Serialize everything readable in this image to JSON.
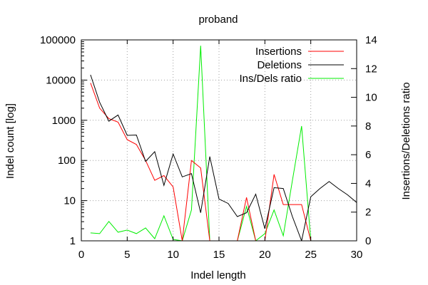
{
  "chart_data": {
    "type": "line",
    "title": "proband",
    "xlabel": "Indel length",
    "ylabel": "Indel count [log]",
    "y2label": "Insertions/Deletions ratio",
    "xlim": [
      0,
      30
    ],
    "ylim": [
      1,
      100000
    ],
    "yscale": "log",
    "y2lim": [
      0,
      14
    ],
    "grid": true,
    "legend_position": "top-right",
    "x_ticks": [
      "0",
      "5",
      "10",
      "15",
      "20",
      "25",
      "30"
    ],
    "y_ticks": [
      "1",
      "10",
      "100",
      "1000",
      "10000",
      "100000"
    ],
    "y2_ticks": [
      "0",
      "2",
      "4",
      "6",
      "8",
      "10",
      "12",
      "14"
    ],
    "series": [
      {
        "name": "Insertions",
        "axis": "y",
        "color": "#ff0000",
        "x": [
          1,
          2,
          3,
          4,
          5,
          6,
          7,
          8,
          9,
          10,
          11,
          12,
          13,
          14,
          15,
          16,
          17,
          18,
          19,
          20,
          21,
          22,
          23,
          24,
          25
        ],
        "y": [
          8500,
          2000,
          1100,
          900,
          330,
          250,
          100,
          32,
          42,
          22,
          1,
          100,
          65,
          1,
          1,
          1,
          1,
          12,
          1,
          1,
          45,
          8,
          8,
          8,
          1
        ]
      },
      {
        "name": "Deletions",
        "axis": "y",
        "color": "#000000",
        "x": [
          1,
          2,
          3,
          4,
          5,
          6,
          7,
          8,
          9,
          10,
          11,
          12,
          13,
          14,
          15,
          16,
          17,
          18,
          19,
          20,
          21,
          22,
          23,
          24,
          25,
          26,
          27,
          28,
          29,
          30
        ],
        "y": [
          13500,
          2800,
          950,
          1350,
          420,
          430,
          95,
          165,
          24,
          145,
          39,
          47,
          5,
          125,
          11,
          8.5,
          4,
          5,
          14.5,
          2,
          21,
          20,
          4,
          1,
          12.5,
          20,
          30,
          20,
          14,
          9
        ]
      },
      {
        "name": "Ins/Dels ratio",
        "axis": "y2",
        "color": "#00ee00",
        "x": [
          1,
          2,
          3,
          4,
          5,
          6,
          7,
          8,
          9,
          10,
          11,
          12,
          13,
          14,
          15,
          16,
          17,
          18,
          19,
          20,
          21,
          22,
          23,
          24,
          25
        ],
        "y": [
          0.55,
          0.5,
          1.35,
          0.6,
          0.75,
          0.5,
          0.9,
          0.15,
          1.75,
          0.1,
          0,
          2.15,
          13.6,
          0,
          0,
          0,
          0,
          2.4,
          0,
          0.5,
          2.15,
          0.35,
          4.2,
          8.0,
          0
        ]
      }
    ]
  }
}
